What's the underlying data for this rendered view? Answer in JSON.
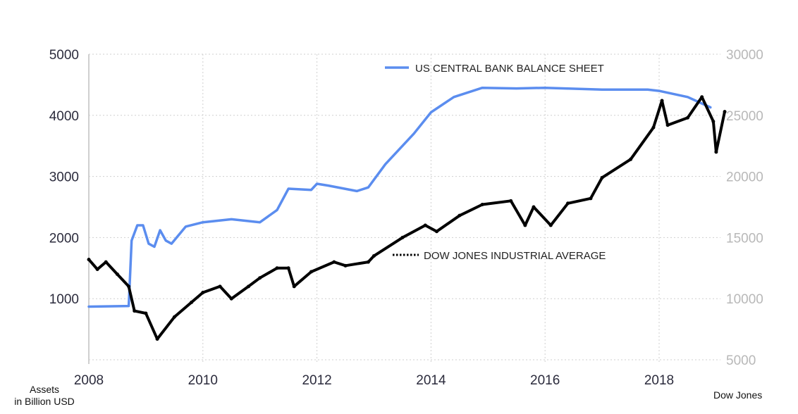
{
  "chart_data": {
    "type": "line",
    "title": "",
    "xlabel": "",
    "ylabel": "Assets in Billion USD",
    "y2label": "Dow Jones",
    "xlim": [
      2008,
      2019.2
    ],
    "ylim": [
      0,
      5000
    ],
    "y2lim": [
      5000,
      30000
    ],
    "x_ticks": [
      "2008",
      "2010",
      "2012",
      "2014",
      "2016",
      "2018"
    ],
    "y_ticks": [
      "1000",
      "2000",
      "3000",
      "4000",
      "5000"
    ],
    "y2_ticks": [
      "5000",
      "10000",
      "15000",
      "20000",
      "25000",
      "30000"
    ],
    "grid": true,
    "series": [
      {
        "name": "US CENTRAL BANK BALANCE SHEET",
        "axis": "left",
        "color": "#5b8def",
        "style": "solid",
        "x": [
          2008.0,
          2008.7,
          2008.75,
          2008.85,
          2008.95,
          2009.05,
          2009.15,
          2009.25,
          2009.35,
          2009.45,
          2009.7,
          2010.0,
          2010.5,
          2011.0,
          2011.3,
          2011.5,
          2011.9,
          2012.0,
          2012.2,
          2012.7,
          2012.9,
          2013.2,
          2013.7,
          2014.0,
          2014.4,
          2014.9,
          2015.5,
          2016.0,
          2017.0,
          2017.8,
          2018.0,
          2018.5,
          2018.9
        ],
        "values": [
          870,
          880,
          1950,
          2200,
          2200,
          1900,
          1850,
          2120,
          1950,
          1900,
          2180,
          2250,
          2300,
          2250,
          2450,
          2800,
          2780,
          2880,
          2850,
          2760,
          2820,
          3200,
          3700,
          4050,
          4300,
          4450,
          4440,
          4450,
          4420,
          4420,
          4400,
          4300,
          4130
        ]
      },
      {
        "name": "DOW JONES INDUSTRIAL AVERAGE",
        "axis": "right",
        "color": "#000000",
        "style": "dotted",
        "x": [
          2008.0,
          2008.15,
          2008.3,
          2008.5,
          2008.7,
          2008.8,
          2009.0,
          2009.2,
          2009.5,
          2009.8,
          2010.0,
          2010.3,
          2010.5,
          2010.8,
          2011.0,
          2011.3,
          2011.5,
          2011.6,
          2011.9,
          2012.3,
          2012.5,
          2012.9,
          2013.0,
          2013.5,
          2013.9,
          2014.1,
          2014.5,
          2014.9,
          2015.4,
          2015.65,
          2015.8,
          2016.1,
          2016.4,
          2016.8,
          2017.0,
          2017.5,
          2017.9,
          2018.05,
          2018.15,
          2018.5,
          2018.75,
          2018.95,
          2019.0,
          2019.15
        ],
        "values": [
          13200,
          12400,
          13000,
          12000,
          11000,
          9000,
          8800,
          6700,
          8500,
          9700,
          10500,
          11000,
          10000,
          11000,
          11700,
          12500,
          12500,
          11000,
          12200,
          13000,
          12700,
          13000,
          13500,
          15000,
          16000,
          15500,
          16800,
          17700,
          18000,
          16000,
          17500,
          16000,
          17800,
          18200,
          19900,
          21400,
          24000,
          26200,
          24200,
          24800,
          26500,
          24500,
          22000,
          25300
        ]
      }
    ],
    "legend": [
      {
        "label": "US CENTRAL BANK BALANCE SHEET",
        "placement": "top-center"
      },
      {
        "label": "DOW JONES INDUSTRIAL AVERAGE",
        "placement": "center"
      }
    ],
    "annotations": {
      "left_axis_note": [
        "Assets",
        "in Billion USD"
      ],
      "right_axis_note": "Dow Jones"
    }
  }
}
